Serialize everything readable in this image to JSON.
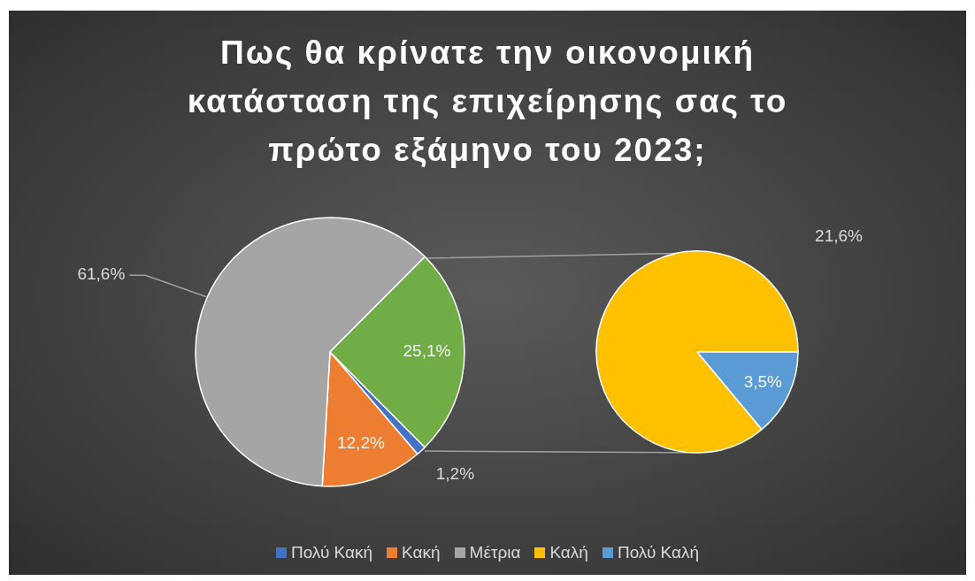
{
  "chart_data": [
    {
      "type": "pie",
      "title": "Πως θα κρίνατε την οικονομική κατάσταση της επιχείρησης σας το πρώτο εξάμηνο του 2023;",
      "categories": [
        "Πολύ Κακή",
        "Κακή",
        "Μέτρια",
        null
      ],
      "values": [
        1.2,
        12.2,
        61.6,
        25.1
      ],
      "colors": [
        "#4472c4",
        "#ed7d31",
        "#a5a5a5",
        "#70ad47"
      ],
      "value_labels": [
        "1,2%",
        "12,2%",
        "61,6%",
        "25,1%"
      ],
      "legend": "bottom"
    },
    {
      "type": "pie",
      "categories": [
        "Καλή",
        "Πολύ Καλή"
      ],
      "values": [
        21.6,
        3.5
      ],
      "colors": [
        "#ffc000",
        "#5b9bd5"
      ],
      "value_labels": [
        "21,6%",
        "3,5%"
      ],
      "legend": "bottom"
    }
  ]
}
